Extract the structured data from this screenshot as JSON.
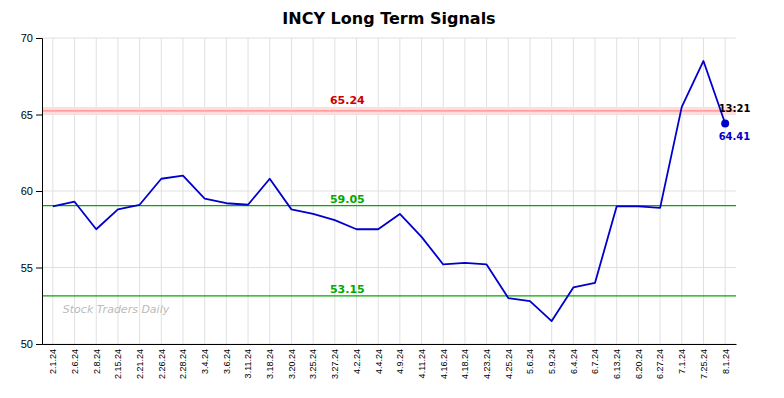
{
  "chart_data": {
    "type": "line",
    "title": "INCY Long Term Signals",
    "categories": [
      "2.1.24",
      "2.6.24",
      "2.8.24",
      "2.15.24",
      "2.21.24",
      "2.26.24",
      "2.28.24",
      "3.4.24",
      "3.6.24",
      "3.11.24",
      "3.18.24",
      "3.20.24",
      "3.25.24",
      "3.27.24",
      "4.2.24",
      "4.4.24",
      "4.9.24",
      "4.11.24",
      "4.16.24",
      "4.18.24",
      "4.23.24",
      "4.25.24",
      "5.6.24",
      "5.9.24",
      "6.4.24",
      "6.7.24",
      "6.13.24",
      "6.20.24",
      "6.27.24",
      "7.1.24",
      "7.25.24",
      "8.1.24"
    ],
    "values": [
      59.0,
      59.3,
      57.5,
      58.8,
      59.1,
      60.8,
      61.0,
      59.5,
      59.2,
      59.1,
      60.8,
      58.8,
      58.5,
      58.1,
      57.5,
      57.5,
      58.5,
      57.0,
      55.2,
      55.3,
      55.2,
      53.0,
      52.8,
      51.5,
      53.7,
      54.0,
      59.0,
      59.0,
      58.9,
      65.5,
      68.5,
      64.41
    ],
    "color": "#0000cc",
    "marker": "last",
    "hlines": [
      {
        "value": 65.24,
        "label": "65.24",
        "color": "#ff8888",
        "label_color": "#cc0000",
        "band": {
          "from": 64.99,
          "to": 65.49,
          "color": "#ffdddd"
        }
      },
      {
        "value": 59.05,
        "label": "59.05",
        "color": "#00aa00",
        "label_color": "#00aa00"
      },
      {
        "value": 53.15,
        "label": "53.15",
        "color": "#00aa00",
        "label_color": "#00aa00"
      }
    ],
    "annotations": [
      {
        "text": "13:21",
        "color": "#000000"
      },
      {
        "text": "64.41",
        "value": 64.41,
        "color": "#0000cc"
      }
    ],
    "watermark": {
      "text": "Stock Traders Daily",
      "color": "#bbbbbb"
    },
    "ylim": [
      50,
      70
    ],
    "yticks": [
      50,
      55,
      60,
      65,
      70
    ],
    "grid": true
  }
}
